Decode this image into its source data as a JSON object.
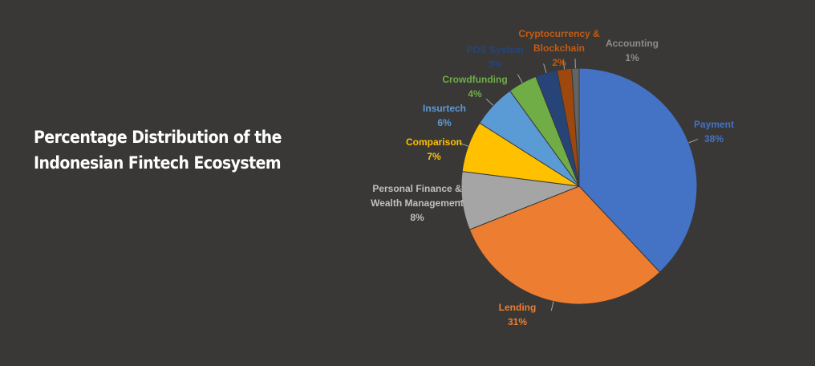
{
  "chart_data": {
    "type": "pie",
    "title": "Percentage Distribution of the Indonesian Fintech Ecosystem",
    "categories": [
      "Payment",
      "Lending",
      "Personal Finance & Wealth Management",
      "Comparison",
      "Insurtech",
      "Crowdfunding",
      "POS System",
      "Cryptocurrency & Blockchain",
      "Accounting"
    ],
    "values": [
      38,
      31,
      8,
      7,
      6,
      4,
      3,
      2,
      1
    ],
    "value_labels": [
      "38%",
      "31%",
      "8%",
      "7%",
      "6%",
      "4%",
      "3%",
      "2%",
      "1%"
    ],
    "colors": [
      "#4472c4",
      "#ed7d31",
      "#a5a5a5",
      "#ffc000",
      "#5b9bd5",
      "#70ad47",
      "#264478",
      "#9e480e",
      "#636363"
    ]
  }
}
